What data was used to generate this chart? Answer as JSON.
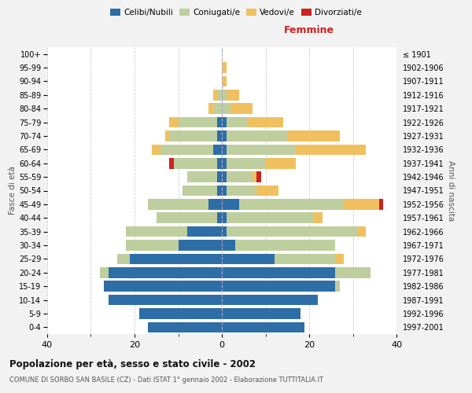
{
  "age_groups": [
    "0-4",
    "5-9",
    "10-14",
    "15-19",
    "20-24",
    "25-29",
    "30-34",
    "35-39",
    "40-44",
    "45-49",
    "50-54",
    "55-59",
    "60-64",
    "65-69",
    "70-74",
    "75-79",
    "80-84",
    "85-89",
    "90-94",
    "95-99",
    "100+"
  ],
  "birth_years": [
    "1997-2001",
    "1992-1996",
    "1987-1991",
    "1982-1986",
    "1977-1981",
    "1972-1976",
    "1967-1971",
    "1962-1966",
    "1957-1961",
    "1952-1956",
    "1947-1951",
    "1942-1946",
    "1937-1941",
    "1932-1936",
    "1927-1931",
    "1922-1926",
    "1917-1921",
    "1912-1916",
    "1907-1911",
    "1902-1906",
    "≤ 1901"
  ],
  "males": {
    "celibi": [
      17,
      19,
      26,
      27,
      26,
      21,
      10,
      8,
      1,
      3,
      1,
      1,
      1,
      2,
      1,
      1,
      0,
      0,
      0,
      0,
      0
    ],
    "coniugati": [
      0,
      0,
      0,
      0,
      2,
      3,
      12,
      14,
      14,
      14,
      8,
      7,
      10,
      12,
      11,
      9,
      2,
      1,
      0,
      0,
      0
    ],
    "vedovi": [
      0,
      0,
      0,
      0,
      0,
      0,
      0,
      0,
      0,
      0,
      0,
      0,
      0,
      2,
      1,
      2,
      1,
      1,
      0,
      0,
      0
    ],
    "divorziati": [
      0,
      0,
      0,
      0,
      0,
      0,
      0,
      0,
      0,
      0,
      0,
      0,
      1,
      0,
      0,
      0,
      0,
      0,
      0,
      0,
      0
    ]
  },
  "females": {
    "nubili": [
      19,
      18,
      22,
      26,
      26,
      12,
      3,
      1,
      1,
      4,
      1,
      1,
      1,
      1,
      1,
      1,
      0,
      0,
      0,
      0,
      0
    ],
    "coniugate": [
      0,
      0,
      0,
      1,
      8,
      14,
      23,
      30,
      20,
      24,
      7,
      6,
      9,
      16,
      14,
      5,
      2,
      1,
      0,
      0,
      0
    ],
    "vedove": [
      0,
      0,
      0,
      0,
      0,
      2,
      0,
      2,
      2,
      8,
      5,
      1,
      7,
      16,
      12,
      8,
      5,
      3,
      1,
      1,
      0
    ],
    "divorziate": [
      0,
      0,
      0,
      0,
      0,
      0,
      0,
      0,
      0,
      1,
      0,
      1,
      0,
      0,
      0,
      0,
      0,
      0,
      0,
      0,
      0
    ]
  },
  "colors": {
    "celibi_nubili": "#2E6EA6",
    "coniugati": "#BFCE9E",
    "vedovi": "#F0C060",
    "divorziati": "#CC2222"
  },
  "xlim": 40,
  "title": "Popolazione per età, sesso e stato civile - 2002",
  "subtitle": "COMUNE DI SORBO SAN BASILE (CZ) - Dati ISTAT 1° gennaio 2002 - Elaborazione TUTTITALIA.IT",
  "ylabel": "Fasce di età",
  "ylabel_right": "Anni di nascita",
  "legend_labels": [
    "Celibi/Nubili",
    "Coniugati/e",
    "Vedovi/e",
    "Divorziati/e"
  ],
  "femmine_label": "Femmine",
  "bg_color": "#F2F2F2",
  "plot_bg": "#FFFFFF"
}
